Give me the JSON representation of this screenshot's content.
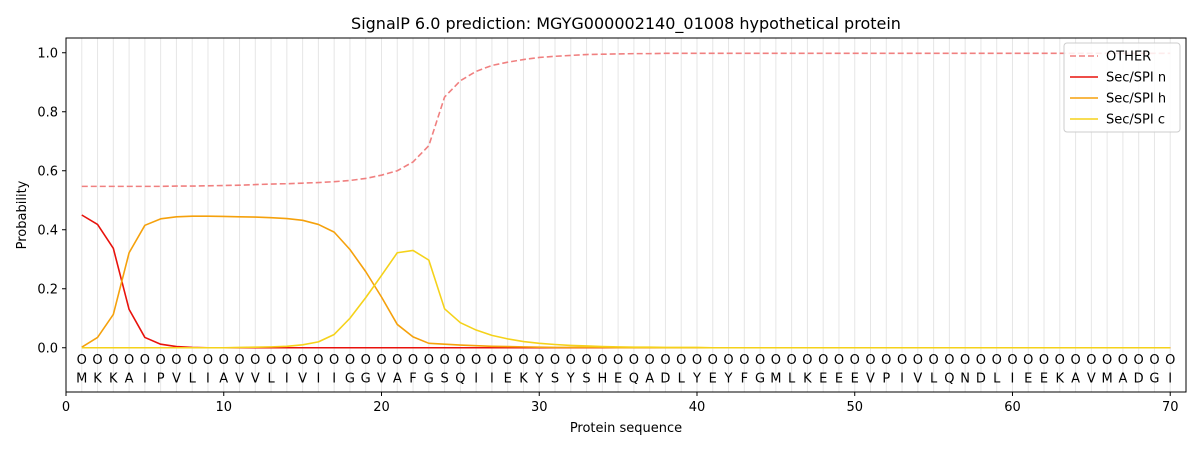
{
  "chart_data": {
    "type": "line",
    "title": "SignalP 6.0 prediction: MGYG000002140_01008 hypothetical protein",
    "xlabel": "Protein sequence",
    "ylabel": "Probability",
    "xlim": [
      0,
      71
    ],
    "ylim": [
      -0.15,
      1.05
    ],
    "xticks": [
      0,
      10,
      20,
      30,
      40,
      50,
      60,
      70
    ],
    "yticks": [
      0.0,
      0.2,
      0.4,
      0.6,
      0.8,
      1.0
    ],
    "ytick_labels": [
      "0.0",
      "0.2",
      "0.4",
      "0.6",
      "0.8",
      "1.0"
    ],
    "legend_position": "top-right",
    "sequence": [
      "M",
      "K",
      "K",
      "A",
      "I",
      "P",
      "V",
      "L",
      "I",
      "A",
      "V",
      "V",
      "L",
      "I",
      "V",
      "I",
      "I",
      "G",
      "G",
      "V",
      "A",
      "F",
      "G",
      "S",
      "Q",
      "I",
      "I",
      "E",
      "K",
      "Y",
      "S",
      "Y",
      "S",
      "H",
      "E",
      "Q",
      "A",
      "D",
      "L",
      "Y",
      "E",
      "Y",
      "F",
      "G",
      "M",
      "L",
      "K",
      "E",
      "E",
      "E",
      "V",
      "P",
      "I",
      "V",
      "L",
      "Q",
      "N",
      "D",
      "L",
      "I",
      "E",
      "E",
      "K",
      "A",
      "V",
      "M",
      "A",
      "D",
      "G",
      "I"
    ],
    "prediction_labels": [
      "O",
      "O",
      "O",
      "O",
      "O",
      "O",
      "O",
      "O",
      "O",
      "O",
      "O",
      "O",
      "O",
      "O",
      "O",
      "O",
      "O",
      "O",
      "O",
      "O",
      "O",
      "O",
      "O",
      "O",
      "O",
      "O",
      "O",
      "O",
      "O",
      "O",
      "O",
      "O",
      "O",
      "O",
      "O",
      "O",
      "O",
      "O",
      "O",
      "O",
      "O",
      "O",
      "O",
      "O",
      "O",
      "O",
      "O",
      "O",
      "O",
      "O",
      "O",
      "O",
      "O",
      "O",
      "O",
      "O",
      "O",
      "O",
      "O",
      "O",
      "O",
      "O",
      "O",
      "O",
      "O",
      "O",
      "O",
      "O",
      "O",
      "O"
    ],
    "series": [
      {
        "name": "OTHER",
        "color": "#f08080",
        "style": "dashed",
        "values": [
          0.547,
          0.547,
          0.547,
          0.547,
          0.547,
          0.547,
          0.548,
          0.548,
          0.549,
          0.55,
          0.551,
          0.553,
          0.555,
          0.556,
          0.558,
          0.56,
          0.563,
          0.567,
          0.574,
          0.585,
          0.6,
          0.63,
          0.685,
          0.85,
          0.905,
          0.937,
          0.957,
          0.968,
          0.977,
          0.984,
          0.988,
          0.991,
          0.994,
          0.995,
          0.996,
          0.997,
          0.997,
          0.998,
          0.998,
          0.998,
          0.998,
          0.998,
          0.998,
          0.998,
          0.998,
          0.998,
          0.998,
          0.998,
          0.998,
          0.998,
          0.998,
          0.998,
          0.998,
          0.998,
          0.998,
          0.998,
          0.998,
          0.998,
          0.998,
          0.998,
          0.998,
          0.998,
          0.998,
          0.998,
          0.998,
          0.998,
          0.998,
          0.998,
          0.998,
          0.998
        ]
      },
      {
        "name": "Sec/SPI n",
        "color": "#e8120c",
        "style": "solid",
        "values": [
          0.45,
          0.418,
          0.337,
          0.13,
          0.035,
          0.012,
          0.004,
          0.001,
          0,
          0,
          0,
          0,
          0,
          0,
          0,
          0,
          0,
          0,
          0,
          0,
          0,
          0,
          0,
          0,
          0,
          0,
          0,
          0,
          0,
          0,
          0,
          0,
          0,
          0,
          0,
          0,
          0,
          0,
          0,
          0,
          0,
          0,
          0,
          0,
          0,
          0,
          0,
          0,
          0,
          0,
          0,
          0,
          0,
          0,
          0,
          0,
          0,
          0,
          0,
          0,
          0,
          0,
          0,
          0,
          0,
          0,
          0,
          0,
          0,
          0
        ]
      },
      {
        "name": "Sec/SPI h",
        "color": "#f5a10c",
        "style": "solid",
        "values": [
          0.002,
          0.035,
          0.113,
          0.322,
          0.415,
          0.437,
          0.444,
          0.446,
          0.446,
          0.445,
          0.444,
          0.443,
          0.441,
          0.438,
          0.432,
          0.418,
          0.392,
          0.333,
          0.258,
          0.172,
          0.079,
          0.037,
          0.015,
          0.012,
          0.009,
          0.007,
          0.005,
          0.004,
          0.003,
          0.002,
          0.001,
          0.001,
          0.001,
          0.001,
          0,
          0,
          0,
          0,
          0,
          0,
          0,
          0,
          0,
          0,
          0,
          0,
          0,
          0,
          0,
          0,
          0,
          0,
          0,
          0,
          0,
          0,
          0,
          0,
          0,
          0,
          0,
          0,
          0,
          0,
          0,
          0,
          0,
          0,
          0,
          0
        ]
      },
      {
        "name": "Sec/SPI c",
        "color": "#f5d21a",
        "style": "solid",
        "values": [
          0,
          0,
          0,
          0,
          0,
          0,
          0,
          0,
          0,
          0,
          0.001,
          0.002,
          0.003,
          0.005,
          0.01,
          0.02,
          0.045,
          0.1,
          0.17,
          0.245,
          0.322,
          0.33,
          0.297,
          0.132,
          0.085,
          0.06,
          0.042,
          0.03,
          0.021,
          0.015,
          0.011,
          0.008,
          0.006,
          0.004,
          0.003,
          0.002,
          0.002,
          0.001,
          0.001,
          0.001,
          0,
          0,
          0,
          0,
          0,
          0,
          0,
          0,
          0,
          0,
          0,
          0,
          0,
          0,
          0,
          0,
          0,
          0,
          0,
          0,
          0,
          0,
          0,
          0,
          0,
          0,
          0,
          0,
          0,
          0
        ]
      }
    ]
  }
}
